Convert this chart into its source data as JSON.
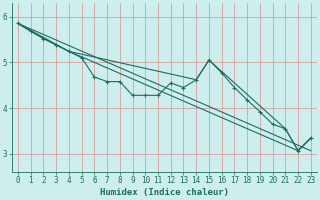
{
  "xlabel": "Humidex (Indice chaleur)",
  "xlim": [
    -0.5,
    23.5
  ],
  "ylim": [
    2.6,
    6.3
  ],
  "yticks": [
    3,
    4,
    5,
    6
  ],
  "xticks": [
    0,
    1,
    2,
    3,
    4,
    5,
    6,
    7,
    8,
    9,
    10,
    11,
    12,
    13,
    14,
    15,
    16,
    17,
    18,
    19,
    20,
    21,
    22,
    23
  ],
  "bg_color": "#ceeeed",
  "grid_color_x": "#d4a0a0",
  "grid_color_y": "#d4a0a0",
  "line_color": "#1a6e60",
  "line1_x": [
    0,
    1,
    2,
    3,
    4,
    5,
    6,
    7,
    8,
    9,
    10,
    11,
    12,
    13,
    14,
    15,
    16,
    17,
    18,
    19,
    20,
    21,
    22,
    23
  ],
  "line1_y": [
    5.85,
    5.68,
    5.52,
    5.38,
    5.24,
    5.1,
    4.68,
    4.58,
    4.58,
    4.28,
    4.28,
    4.28,
    4.55,
    4.45,
    4.62,
    5.05,
    4.77,
    4.45,
    4.18,
    3.92,
    3.65,
    3.55,
    3.07,
    3.35
  ],
  "line2_x": [
    0,
    1,
    2,
    3,
    4,
    22,
    23
  ],
  "line2_y": [
    5.85,
    5.68,
    5.52,
    5.38,
    5.24,
    3.07,
    3.35
  ],
  "line3_x": [
    0,
    23
  ],
  "line3_y": [
    5.85,
    3.07
  ],
  "line4_x": [
    0,
    4,
    14,
    15,
    21,
    22,
    23
  ],
  "line4_y": [
    5.85,
    5.24,
    4.62,
    5.05,
    3.55,
    3.07,
    3.35
  ]
}
